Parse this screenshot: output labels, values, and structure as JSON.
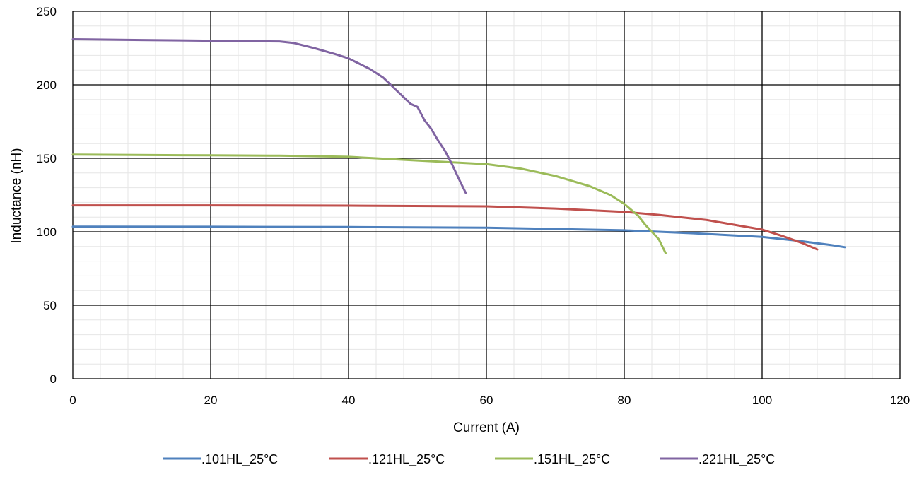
{
  "chart_data": {
    "type": "line",
    "title": "",
    "xlabel": "Current (A)",
    "ylabel": "Inductance (nH)",
    "xlim": [
      0,
      120
    ],
    "ylim": [
      0,
      250
    ],
    "x_ticks": [
      0,
      20,
      40,
      60,
      80,
      100,
      120
    ],
    "y_ticks": [
      0,
      50,
      100,
      150,
      200,
      250
    ],
    "grid": "major and minor",
    "legend_position": "bottom",
    "series": [
      {
        "name": ".101HL_25°C",
        "color": "#4F81BD",
        "x": [
          0,
          20,
          40,
          60,
          80,
          90,
          100,
          105,
          110,
          112
        ],
        "y": [
          103.5,
          103.4,
          103.2,
          102.8,
          101,
          99,
          96.5,
          94,
          91,
          89.5
        ]
      },
      {
        "name": ".121HL_25°C",
        "color": "#C0504D",
        "x": [
          0,
          20,
          40,
          60,
          70,
          80,
          85,
          92,
          100,
          103,
          106,
          108
        ],
        "y": [
          118,
          118,
          117.8,
          117.3,
          115.8,
          113.5,
          111.5,
          108,
          101.5,
          97,
          92,
          88
        ]
      },
      {
        "name": ".151HL_25°C",
        "color": "#9BBB59",
        "x": [
          0,
          20,
          30,
          40,
          50,
          60,
          65,
          70,
          75,
          78,
          80,
          82,
          83,
          84,
          85,
          86
        ],
        "y": [
          152.5,
          152,
          151.8,
          151,
          148.5,
          146,
          143,
          138,
          131,
          125,
          119,
          111,
          105,
          100,
          95,
          85.5
        ]
      },
      {
        "name": ".221HL_25°C",
        "color": "#8064A2",
        "x": [
          0,
          10,
          20,
          30,
          32,
          35,
          38,
          40,
          43,
          45,
          47,
          49,
          50,
          51,
          52,
          53,
          54,
          55,
          56,
          57
        ],
        "y": [
          231,
          230.5,
          230,
          229.5,
          228.5,
          225,
          221,
          218,
          211,
          205,
          196,
          187,
          185,
          176,
          170,
          162,
          155,
          146,
          136,
          126.5
        ]
      }
    ]
  }
}
